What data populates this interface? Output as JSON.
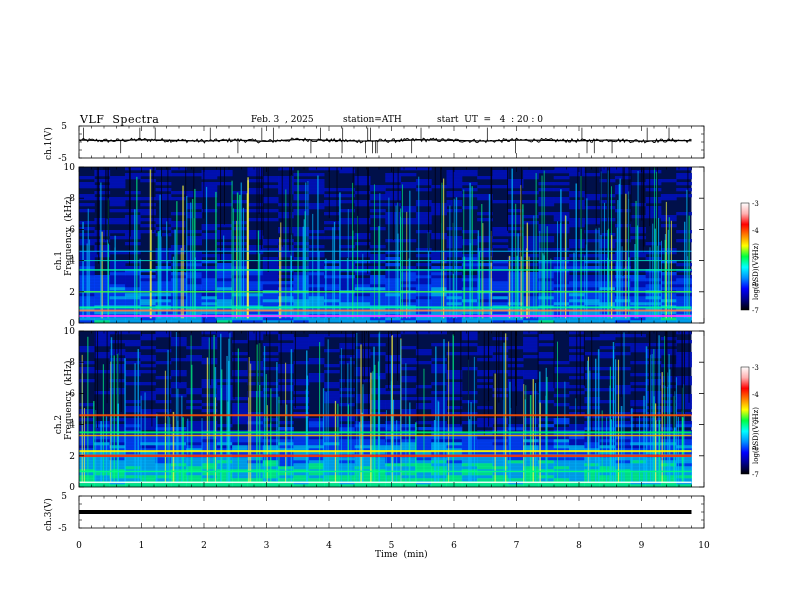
{
  "header": {
    "title": "VLF  Spectra",
    "date": "Feb. 3  , 2025",
    "station": "station=ATH",
    "start": "start  UT  =   4  : 20 : 0"
  },
  "chart_data": [
    {
      "type": "line",
      "panel": "ch1-waveform",
      "ylabel": "ch.1(V)",
      "ylim": [
        -5,
        5
      ],
      "yticks": [
        "5",
        "-5"
      ],
      "x": [
        0,
        0.5,
        1,
        1.5,
        2,
        2.5,
        3,
        3.5,
        4,
        4.5,
        5,
        5.5,
        6,
        6.5,
        7,
        7.5,
        8,
        8.5,
        9,
        9.5,
        9.8
      ],
      "values": [
        0.6,
        0.4,
        0.7,
        0.5,
        0.3,
        0.6,
        0.2,
        0.8,
        0.5,
        0.3,
        0.4,
        0.7,
        0.5,
        0.3,
        0.6,
        0.5,
        0.4,
        0.6,
        0.3,
        0.5,
        0.4
      ]
    },
    {
      "type": "heatmap",
      "panel": "ch1-spectrogram",
      "ylabel": "ch.1\nFrequency  (kHz)",
      "ylim": [
        0,
        10
      ],
      "yticks": [
        "0",
        "2",
        "4",
        "6",
        "8",
        "10"
      ],
      "colorbar": {
        "label": "log(PSD)(V²/Hz)",
        "range": [
          -7,
          -3
        ],
        "ticks": [
          "-3",
          "-4",
          "-5",
          "-6",
          "-7"
        ]
      },
      "bands_khz": [
        0.5,
        1.0,
        2.0,
        3.4,
        4.0,
        4.6
      ],
      "colors": [
        "#00002a",
        "#0000ff",
        "#00a0ff",
        "#00ff80",
        "#ffff00",
        "#ff0000",
        "#ffffff"
      ]
    },
    {
      "type": "heatmap",
      "panel": "ch2-spectrogram",
      "ylabel": "ch.2\nFrequency  (kHz)",
      "ylim": [
        0,
        10
      ],
      "yticks": [
        "0",
        "2",
        "4",
        "6",
        "8",
        "10"
      ],
      "colorbar": {
        "label": "log(PSD)(V²/Hz)",
        "range": [
          -7,
          -3
        ],
        "ticks": [
          "-3",
          "-4",
          "-5",
          "-6",
          "-7"
        ]
      },
      "bands_khz": [
        1.0,
        2.0,
        3.4,
        4.6
      ]
    },
    {
      "type": "line",
      "panel": "ch3-waveform",
      "ylabel": "ch.3(V)",
      "ylim": [
        -5,
        5
      ],
      "yticks": [
        "5",
        "-5"
      ],
      "x": [
        0,
        9.8
      ],
      "values": [
        0,
        0
      ]
    }
  ],
  "xaxis": {
    "label": "Time  (min)",
    "xlim": [
      0,
      10
    ],
    "ticks": [
      "0",
      "1",
      "2",
      "3",
      "4",
      "5",
      "6",
      "7",
      "8",
      "9",
      "10"
    ]
  }
}
